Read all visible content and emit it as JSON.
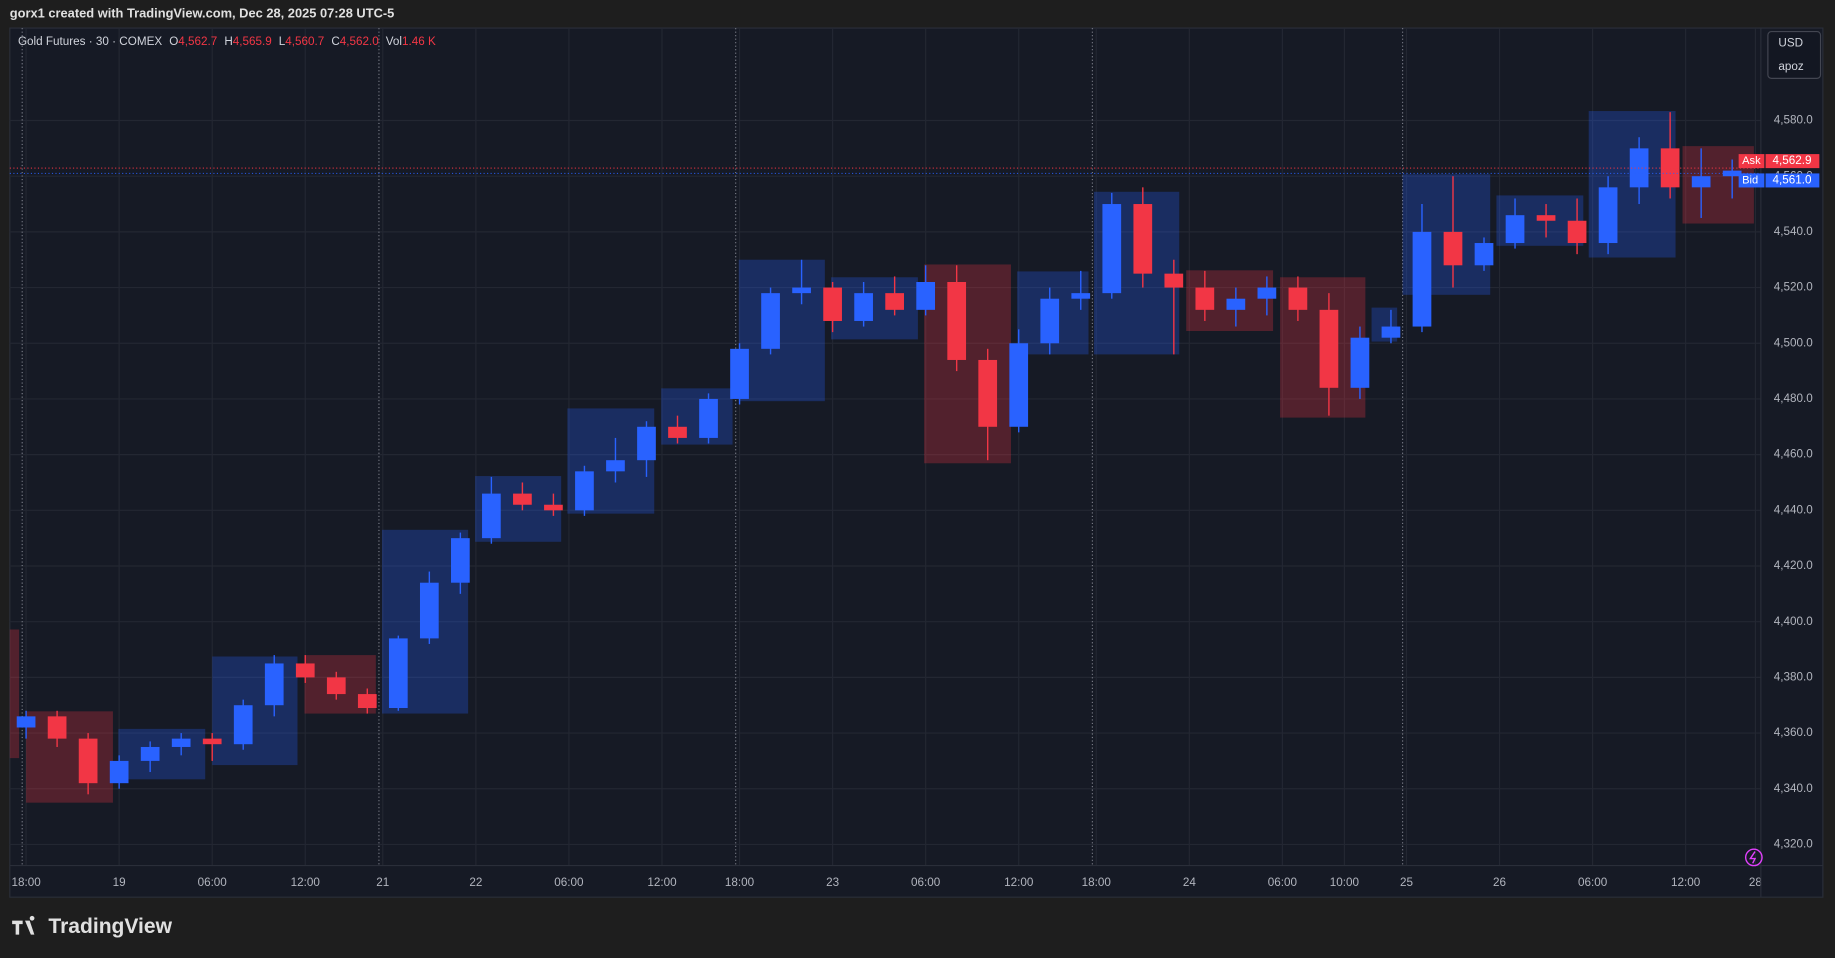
{
  "header": {
    "credit": "gorx1 created with TradingView.com, Dec 28, 2025 07:28 UTC-5"
  },
  "legend": {
    "symbol": "Gold Futures · 30 · COMEX",
    "fields": [
      {
        "key": "O",
        "value": "4,562.7"
      },
      {
        "key": "H",
        "value": "4,565.9"
      },
      {
        "key": "L",
        "value": "4,560.7"
      },
      {
        "key": "C",
        "value": "4,562.0"
      },
      {
        "key": "Vol",
        "value": "1.46 K"
      }
    ]
  },
  "currency": {
    "code": "USD",
    "unit": "apoz"
  },
  "footer": {
    "brand": "TradingView"
  },
  "chart_data": {
    "type": "candlestick",
    "up_color": "#2962ff",
    "down_color": "#f23645",
    "grid": true,
    "xlim": [
      -2.1,
      223.7
    ],
    "ylim": [
      4312.4,
      4613.2
    ],
    "xticks": [
      {
        "value": 0,
        "label": "18:00"
      },
      {
        "value": 12,
        "label": "19"
      },
      {
        "value": 24,
        "label": "06:00"
      },
      {
        "value": 36,
        "label": "12:00"
      },
      {
        "value": 46,
        "label": "21"
      },
      {
        "value": 58,
        "label": "22"
      },
      {
        "value": 70,
        "label": "06:00"
      },
      {
        "value": 82,
        "label": "12:00"
      },
      {
        "value": 92,
        "label": "18:00"
      },
      {
        "value": 104,
        "label": "23"
      },
      {
        "value": 116,
        "label": "06:00"
      },
      {
        "value": 128,
        "label": "12:00"
      },
      {
        "value": 138,
        "label": "18:00"
      },
      {
        "value": 150,
        "label": "24"
      },
      {
        "value": 162,
        "label": "06:00"
      },
      {
        "value": 170,
        "label": "10:00"
      },
      {
        "value": 178,
        "label": "25"
      },
      {
        "value": 190,
        "label": "26"
      },
      {
        "value": 202,
        "label": "06:00"
      },
      {
        "value": 214,
        "label": "12:00"
      },
      {
        "value": 223,
        "label": "28"
      }
    ],
    "yticks": [
      {
        "value": 4320,
        "label": "4,320.0"
      },
      {
        "value": 4340,
        "label": "4,340.0"
      },
      {
        "value": 4360,
        "label": "4,360.0"
      },
      {
        "value": 4380,
        "label": "4,380.0"
      },
      {
        "value": 4400,
        "label": "4,400.0"
      },
      {
        "value": 4420,
        "label": "4,420.0"
      },
      {
        "value": 4440,
        "label": "4,440.0"
      },
      {
        "value": 4460,
        "label": "4,460.0"
      },
      {
        "value": 4480,
        "label": "4,480.0"
      },
      {
        "value": 4500,
        "label": "4,500.0"
      },
      {
        "value": 4520,
        "label": "4,520.0"
      },
      {
        "value": 4540,
        "label": "4,540.0"
      },
      {
        "value": 4560,
        "label": "4,560.0"
      },
      {
        "value": 4580,
        "label": "4,580.0"
      }
    ],
    "session_breaks": [
      -0.5,
      45.5,
      91.5,
      137.5,
      177.5
    ],
    "quotes": [
      {
        "name": "Ask",
        "value": 4562.9,
        "value_label": "4,562.9",
        "color": "#f23645"
      },
      {
        "name": "Bid",
        "value": 4561.0,
        "value_label": "4,561.0",
        "color": "#2962ff"
      }
    ],
    "boxes": [
      {
        "x0": -2.1,
        "x1": -0.9,
        "top": 4397.2,
        "bottom": 4351.0,
        "color": "#f23645"
      },
      {
        "x0": 0,
        "x1": 11.2,
        "top": 4367.8,
        "bottom": 4335.0,
        "color": "#f23645"
      },
      {
        "x0": 11.9,
        "x1": 23.1,
        "top": 4361.5,
        "bottom": 4343.4,
        "color": "#2962ff"
      },
      {
        "x0": 24,
        "x1": 35,
        "top": 4387.5,
        "bottom": 4348.5,
        "color": "#2962ff"
      },
      {
        "x0": 35.9,
        "x1": 45.1,
        "top": 4388,
        "bottom": 4367,
        "color": "#f23645"
      },
      {
        "x0": 45.9,
        "x1": 57,
        "top": 4433,
        "bottom": 4367,
        "color": "#2962ff"
      },
      {
        "x0": 57.9,
        "x1": 69,
        "top": 4452.3,
        "bottom": 4428.7,
        "color": "#2962ff"
      },
      {
        "x0": 69.8,
        "x1": 81,
        "top": 4476.6,
        "bottom": 4438.8,
        "color": "#2962ff"
      },
      {
        "x0": 81.9,
        "x1": 91.1,
        "top": 4483.8,
        "bottom": 4463.6,
        "color": "#2962ff"
      },
      {
        "x0": 91.9,
        "x1": 103,
        "top": 4530,
        "bottom": 4479.2,
        "color": "#2962ff"
      },
      {
        "x0": 103.8,
        "x1": 115,
        "top": 4523.7,
        "bottom": 4501.4,
        "color": "#2962ff"
      },
      {
        "x0": 115.8,
        "x1": 127,
        "top": 4528.3,
        "bottom": 4456.9,
        "color": "#f23645"
      },
      {
        "x0": 127.8,
        "x1": 137,
        "top": 4525.8,
        "bottom": 4496,
        "color": "#2962ff"
      },
      {
        "x0": 137.7,
        "x1": 148.7,
        "top": 4554.4,
        "bottom": 4496,
        "color": "#2962ff"
      },
      {
        "x0": 149.6,
        "x1": 160.8,
        "top": 4526.2,
        "bottom": 4504.4,
        "color": "#f23645"
      },
      {
        "x0": 161.7,
        "x1": 172.7,
        "top": 4523.7,
        "bottom": 4473.3,
        "color": "#f23645"
      },
      {
        "x0": 173.5,
        "x1": 176.8,
        "top": 4512.8,
        "bottom": 4500.6,
        "color": "#2962ff"
      },
      {
        "x0": 177.5,
        "x1": 188.8,
        "top": 4560.7,
        "bottom": 4517.4,
        "color": "#2962ff"
      },
      {
        "x0": 189.6,
        "x1": 200.8,
        "top": 4553.1,
        "bottom": 4535,
        "color": "#2962ff"
      },
      {
        "x0": 201.5,
        "x1": 212.7,
        "top": 4583.4,
        "bottom": 4530.8,
        "color": "#2962ff"
      },
      {
        "x0": 213.6,
        "x1": 222.8,
        "top": 4570.8,
        "bottom": 4543,
        "color": "#f23645"
      }
    ],
    "candles": [
      {
        "x": 0,
        "o": 4362,
        "h": 4368,
        "l": 4358,
        "c": 4366
      },
      {
        "x": 4,
        "o": 4366,
        "h": 4368,
        "l": 4355,
        "c": 4358
      },
      {
        "x": 8,
        "o": 4358,
        "h": 4360,
        "l": 4338,
        "c": 4342
      },
      {
        "x": 12,
        "o": 4342,
        "h": 4352,
        "l": 4340,
        "c": 4350
      },
      {
        "x": 16,
        "o": 4350,
        "h": 4357,
        "l": 4346,
        "c": 4355
      },
      {
        "x": 20,
        "o": 4355,
        "h": 4360,
        "l": 4352,
        "c": 4358
      },
      {
        "x": 24,
        "o": 4358,
        "h": 4360,
        "l": 4350,
        "c": 4356
      },
      {
        "x": 28,
        "o": 4356,
        "h": 4372,
        "l": 4354,
        "c": 4370
      },
      {
        "x": 32,
        "o": 4370,
        "h": 4388,
        "l": 4366,
        "c": 4385
      },
      {
        "x": 36,
        "o": 4385,
        "h": 4388,
        "l": 4378,
        "c": 4380
      },
      {
        "x": 40,
        "o": 4380,
        "h": 4382,
        "l": 4372,
        "c": 4374
      },
      {
        "x": 44,
        "o": 4374,
        "h": 4376,
        "l": 4367,
        "c": 4369
      },
      {
        "x": 48,
        "o": 4369,
        "h": 4395,
        "l": 4368,
        "c": 4394
      },
      {
        "x": 52,
        "o": 4394,
        "h": 4418,
        "l": 4392,
        "c": 4414
      },
      {
        "x": 56,
        "o": 4414,
        "h": 4432,
        "l": 4410,
        "c": 4430
      },
      {
        "x": 60,
        "o": 4430,
        "h": 4452,
        "l": 4428,
        "c": 4446
      },
      {
        "x": 64,
        "o": 4446,
        "h": 4450,
        "l": 4440,
        "c": 4442
      },
      {
        "x": 68,
        "o": 4442,
        "h": 4446,
        "l": 4438,
        "c": 4440
      },
      {
        "x": 72,
        "o": 4440,
        "h": 4456,
        "l": 4438,
        "c": 4454
      },
      {
        "x": 76,
        "o": 4454,
        "h": 4466,
        "l": 4450,
        "c": 4458
      },
      {
        "x": 80,
        "o": 4458,
        "h": 4472,
        "l": 4452,
        "c": 4470
      },
      {
        "x": 84,
        "o": 4470,
        "h": 4474,
        "l": 4464,
        "c": 4466
      },
      {
        "x": 88,
        "o": 4466,
        "h": 4482,
        "l": 4464,
        "c": 4480
      },
      {
        "x": 92,
        "o": 4480,
        "h": 4500,
        "l": 4478,
        "c": 4498
      },
      {
        "x": 96,
        "o": 4498,
        "h": 4520,
        "l": 4496,
        "c": 4518
      },
      {
        "x": 100,
        "o": 4518,
        "h": 4530,
        "l": 4514,
        "c": 4520
      },
      {
        "x": 104,
        "o": 4520,
        "h": 4522,
        "l": 4504,
        "c": 4508
      },
      {
        "x": 108,
        "o": 4508,
        "h": 4522,
        "l": 4506,
        "c": 4518
      },
      {
        "x": 112,
        "o": 4518,
        "h": 4524,
        "l": 4510,
        "c": 4512
      },
      {
        "x": 116,
        "o": 4512,
        "h": 4528,
        "l": 4510,
        "c": 4522
      },
      {
        "x": 120,
        "o": 4522,
        "h": 4528,
        "l": 4490,
        "c": 4494
      },
      {
        "x": 124,
        "o": 4494,
        "h": 4498,
        "l": 4458,
        "c": 4470
      },
      {
        "x": 128,
        "o": 4470,
        "h": 4505,
        "l": 4468,
        "c": 4500
      },
      {
        "x": 132,
        "o": 4500,
        "h": 4520,
        "l": 4496,
        "c": 4516
      },
      {
        "x": 136,
        "o": 4516,
        "h": 4526,
        "l": 4512,
        "c": 4518
      },
      {
        "x": 140,
        "o": 4518,
        "h": 4554,
        "l": 4516,
        "c": 4550
      },
      {
        "x": 144,
        "o": 4550,
        "h": 4556,
        "l": 4520,
        "c": 4525
      },
      {
        "x": 148,
        "o": 4525,
        "h": 4530,
        "l": 4496,
        "c": 4520
      },
      {
        "x": 152,
        "o": 4520,
        "h": 4526,
        "l": 4508,
        "c": 4512
      },
      {
        "x": 156,
        "o": 4512,
        "h": 4520,
        "l": 4506,
        "c": 4516
      },
      {
        "x": 160,
        "o": 4516,
        "h": 4524,
        "l": 4510,
        "c": 4520
      },
      {
        "x": 164,
        "o": 4520,
        "h": 4524,
        "l": 4508,
        "c": 4512
      },
      {
        "x": 168,
        "o": 4512,
        "h": 4518,
        "l": 4474,
        "c": 4484
      },
      {
        "x": 172,
        "o": 4484,
        "h": 4506,
        "l": 4480,
        "c": 4502
      },
      {
        "x": 176,
        "o": 4502,
        "h": 4512,
        "l": 4500,
        "c": 4506
      },
      {
        "x": 180,
        "o": 4506,
        "h": 4550,
        "l": 4504,
        "c": 4540
      },
      {
        "x": 184,
        "o": 4540,
        "h": 4560,
        "l": 4520,
        "c": 4528
      },
      {
        "x": 188,
        "o": 4528,
        "h": 4538,
        "l": 4526,
        "c": 4536
      },
      {
        "x": 192,
        "o": 4536,
        "h": 4552,
        "l": 4534,
        "c": 4546
      },
      {
        "x": 196,
        "o": 4546,
        "h": 4550,
        "l": 4538,
        "c": 4544
      },
      {
        "x": 200,
        "o": 4544,
        "h": 4552,
        "l": 4532,
        "c": 4536
      },
      {
        "x": 204,
        "o": 4536,
        "h": 4560,
        "l": 4532,
        "c": 4556
      },
      {
        "x": 208,
        "o": 4556,
        "h": 4574,
        "l": 4550,
        "c": 4570
      },
      {
        "x": 212,
        "o": 4570,
        "h": 4583,
        "l": 4552,
        "c": 4556
      },
      {
        "x": 216,
        "o": 4556,
        "h": 4570,
        "l": 4545,
        "c": 4560
      },
      {
        "x": 220,
        "o": 4560,
        "h": 4566,
        "l": 4552,
        "c": 4562
      }
    ]
  }
}
